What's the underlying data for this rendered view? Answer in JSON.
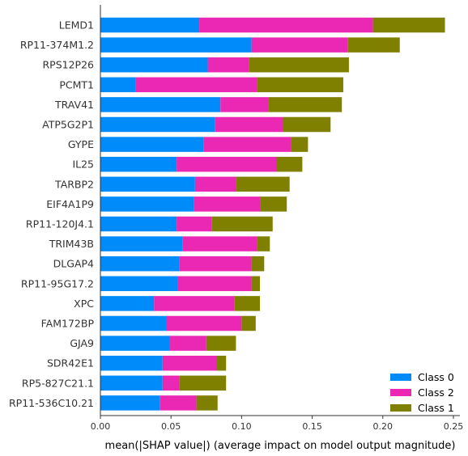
{
  "chart_data": {
    "type": "bar",
    "orientation": "horizontal",
    "stacked": true,
    "categories": [
      "LEMD1",
      "RP11-374M1.2",
      "RPS12P26",
      "PCMT1",
      "TRAV41",
      "ATP5G2P1",
      "GYPE",
      "IL25",
      "TARBP2",
      "EIF4A1P9",
      "RP11-120J4.1",
      "TRIM43B",
      "DLGAP4",
      "RP11-95G17.2",
      "XPC",
      "FAM172BP",
      "GJA9",
      "SDR42E1",
      "RP5-827C21.1",
      "RP11-536C10.21"
    ],
    "series": [
      {
        "name": "Class 0",
        "color": "#008bfb",
        "values": [
          0.07,
          0.107,
          0.076,
          0.025,
          0.085,
          0.081,
          0.073,
          0.054,
          0.067,
          0.066,
          0.054,
          0.058,
          0.056,
          0.055,
          0.038,
          0.047,
          0.049,
          0.044,
          0.044,
          0.042
        ]
      },
      {
        "name": "Class 2",
        "color": "#ea28b4",
        "values": [
          0.123,
          0.068,
          0.029,
          0.086,
          0.034,
          0.048,
          0.062,
          0.071,
          0.029,
          0.047,
          0.025,
          0.053,
          0.051,
          0.052,
          0.057,
          0.053,
          0.026,
          0.038,
          0.012,
          0.026
        ]
      },
      {
        "name": "Class 1",
        "color": "#808000",
        "values": [
          0.051,
          0.037,
          0.071,
          0.061,
          0.052,
          0.034,
          0.012,
          0.018,
          0.038,
          0.019,
          0.043,
          0.009,
          0.009,
          0.006,
          0.018,
          0.01,
          0.021,
          0.007,
          0.033,
          0.015
        ]
      }
    ],
    "xlabel": "mean(|SHAP value|) (average impact on model output magnitude)",
    "xlim": [
      0,
      0.25
    ],
    "xticks": [
      "0.00",
      "0.05",
      "0.10",
      "0.15",
      "0.20",
      "0.25"
    ],
    "grid": false,
    "legend": {
      "placement": "bottom-right",
      "entries": [
        {
          "name": "Class 0",
          "color": "#008bfb"
        },
        {
          "name": "Class 2",
          "color": "#ea28b4"
        },
        {
          "name": "Class 1",
          "color": "#808000"
        }
      ]
    }
  }
}
